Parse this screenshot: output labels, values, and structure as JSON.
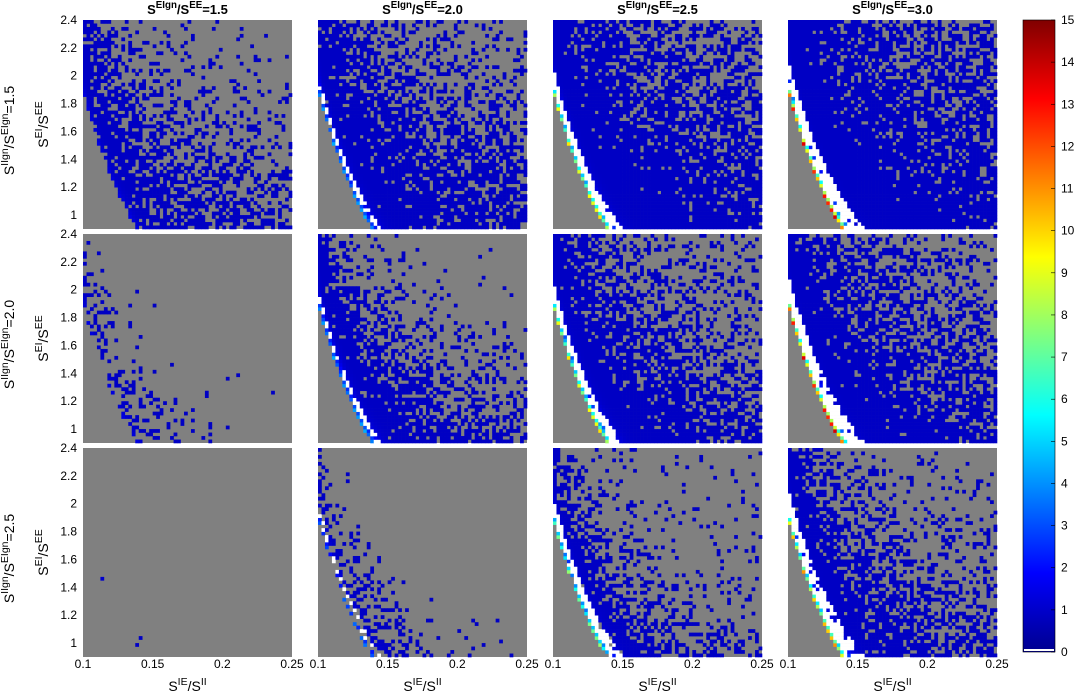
{
  "colors": {
    "invalid_region": "#808080",
    "saturated": "#ffffff",
    "colormap": "jet"
  },
  "chart_data": {
    "type": "heatmap",
    "layout": "3x4 grid of heatmaps with shared colorbar",
    "xlim": [
      0.1,
      0.25
    ],
    "ylim": [
      0.9,
      2.4
    ],
    "x_ticks": [
      "0.1",
      "0.15",
      "0.2",
      "0.25"
    ],
    "y_ticks": [
      "1",
      "1.2",
      "1.4",
      "1.6",
      "1.8",
      "2",
      "2.2",
      "2.4"
    ],
    "xlabel": {
      "base": "S",
      "sup1": "IE",
      "mid": "/S",
      "sup2": "II",
      "end": ""
    },
    "ylabel": {
      "base": "S",
      "sup1": "EI",
      "mid": "/S",
      "sup2": "EE",
      "end": ""
    },
    "columns": [
      {
        "base": "S",
        "sup1": "EIgn",
        "mid": "/S",
        "sup2": "EE",
        "end": "=1.5",
        "ratio": 1.5
      },
      {
        "base": "S",
        "sup1": "EIgn",
        "mid": "/S",
        "sup2": "EE",
        "end": "=2.0",
        "ratio": 2.0
      },
      {
        "base": "S",
        "sup1": "EIgn",
        "mid": "/S",
        "sup2": "EE",
        "end": "=2.5",
        "ratio": 2.5
      },
      {
        "base": "S",
        "sup1": "EIgn",
        "mid": "/S",
        "sup2": "EE",
        "end": "=3.0",
        "ratio": 3.0
      }
    ],
    "rows": [
      {
        "base": "S",
        "sup1": "IIgn",
        "mid": "/S",
        "sup2": "EIgn",
        "end": "=1.5",
        "ratio": 1.5
      },
      {
        "base": "S",
        "sup1": "IIgn",
        "mid": "/S",
        "sup2": "EIgn",
        "end": "=2.0",
        "ratio": 2.0
      },
      {
        "base": "S",
        "sup1": "IIgn",
        "mid": "/S",
        "sup2": "EIgn",
        "end": "=2.5",
        "ratio": 2.5
      }
    ],
    "colorbar": {
      "min": 0,
      "max": 15,
      "ticks": [
        "0",
        "1",
        "2",
        "3",
        "4",
        "5",
        "6",
        "7",
        "8",
        "9",
        "10",
        "11",
        "12",
        "13",
        "14",
        "15"
      ]
    }
  }
}
